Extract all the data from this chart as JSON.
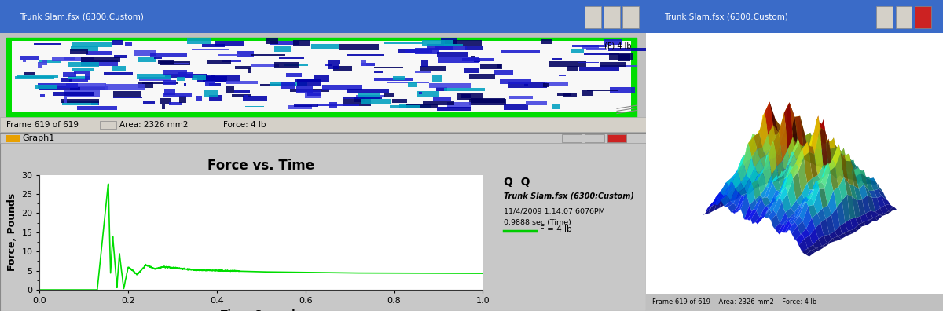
{
  "fig_width": 12.0,
  "fig_height": 3.96,
  "fig_bg": "#c0c0c0",
  "left_panel_title": "Trunk Slam.fsx (6300:Custom)",
  "left_panel_title_bar_color": "#3a6bc8",
  "graph_panel_title": "Graph1",
  "graph_bg": "#ffffff",
  "graph_title": "Force vs. Time",
  "graph_xlabel": "Time, Seconds",
  "graph_ylabel": "Force, Pounds",
  "graph_xlim": [
    0.0,
    1.0
  ],
  "graph_ylim": [
    0,
    30
  ],
  "graph_yticks": [
    0,
    5,
    10,
    15,
    20,
    25,
    30
  ],
  "graph_xticks": [
    0.0,
    0.2,
    0.4,
    0.6,
    0.8,
    1.0
  ],
  "line_color": "#00dd00",
  "info_text_line1": "Trunk Slam.fsx (6300:Custom)",
  "info_text_line2": "11/4/2009 1:14:07.6076PM",
  "info_text_line3": "0.9888 sec (Time)",
  "info_text_line4": "F = 4 lb",
  "info_legend_color": "#00cc00",
  "right_panel_title": "Trunk Slam.fsx (6300:Custom)",
  "bottom_status": "Frame 619 of 619      Area: 2326 mm2      Force: 4 lb"
}
